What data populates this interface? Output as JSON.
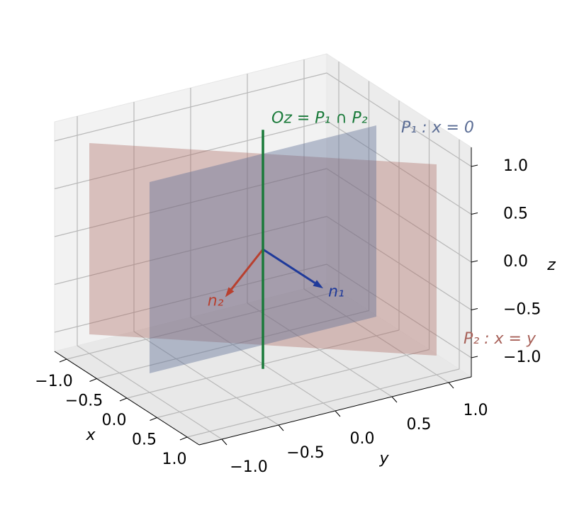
{
  "chart_data": {
    "type": "3d",
    "xlabel": "x",
    "ylabel": "y",
    "zlabel": "z",
    "xlim": [
      -1.2,
      1.2
    ],
    "ylim": [
      -1.2,
      1.2
    ],
    "zlim": [
      -1.2,
      1.2
    ],
    "xticks": [
      {
        "value": -1,
        "label": "−1.0"
      },
      {
        "value": -0.5,
        "label": "−0.5"
      },
      {
        "value": 0,
        "label": "0.0"
      },
      0.5,
      {
        "value": 1,
        "label": "1.0"
      }
    ],
    "yticks": [
      {
        "value": -1,
        "label": "−1.0"
      },
      {
        "value": -0.5,
        "label": "−0.5"
      },
      {
        "value": 0,
        "label": "0.0"
      },
      0.5,
      {
        "value": 1,
        "label": "1.0"
      }
    ],
    "zticks": [
      {
        "value": -1,
        "label": "−1.0"
      },
      {
        "value": -0.5,
        "label": "−0.5"
      },
      {
        "value": 0,
        "label": "0.0"
      },
      0.5,
      {
        "value": 1,
        "label": "1.0"
      }
    ],
    "grid": true,
    "surfaces": [
      {
        "name": "P₂ : x = y",
        "color": "#a8625a",
        "alpha": 0.35,
        "x": [
          -1,
          1,
          1,
          -1
        ],
        "y": [
          -1,
          1,
          1,
          -1
        ],
        "z": [
          1,
          1,
          -1,
          -1
        ]
      },
      {
        "name": "P₁ : x = 0",
        "color": "#5a6c94",
        "alpha": 0.4,
        "x": [
          0,
          0,
          0,
          0
        ],
        "y": [
          -1,
          1,
          1,
          -1
        ],
        "z": [
          1,
          1,
          -1,
          -1
        ]
      }
    ],
    "vectors": [
      {
        "name": "n₁",
        "color": "#1f3a9a",
        "origin": [
          0,
          0,
          0
        ],
        "direction": [
          1,
          0,
          0
        ]
      },
      {
        "name": "n₂",
        "color": "#b8402f",
        "origin": [
          0,
          0,
          0
        ],
        "direction": [
          0.71,
          -0.71,
          0
        ]
      }
    ],
    "lines": [
      {
        "name": "Oz = P₁ ∩ P₂",
        "color": "#1a7a3a",
        "x": [
          0,
          0
        ],
        "y": [
          0,
          0
        ],
        "z": [
          -1.25,
          1.25
        ]
      }
    ]
  }
}
